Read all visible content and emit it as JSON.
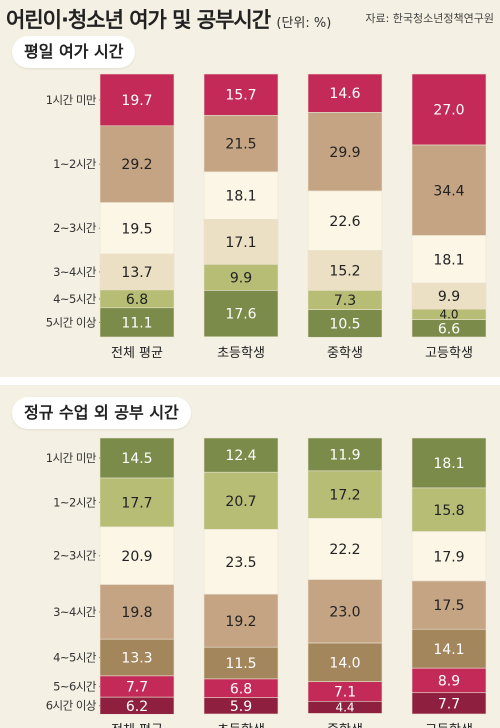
{
  "title": "어린이·청소년 여가 및 공부시간",
  "unit": "(단위: %)",
  "source": "자료: 한국청소년정책연구원",
  "chart_data": [
    {
      "type": "bar",
      "stacked": true,
      "orientation": "vertical",
      "title": "평일 여가 시간",
      "categories": [
        "전체 평균",
        "초등학생",
        "중학생",
        "고등학생"
      ],
      "series": [
        {
          "name": "1시간 미만",
          "color": "#c42a58",
          "values": [
            19.7,
            15.7,
            14.6,
            27.0
          ]
        },
        {
          "name": "1~2시간",
          "color": "#c5a484",
          "values": [
            29.2,
            21.5,
            29.9,
            34.4
          ]
        },
        {
          "name": "2~3시간",
          "color": "#fbf6e6",
          "values": [
            19.5,
            18.1,
            22.6,
            18.1
          ]
        },
        {
          "name": "3~4시간",
          "color": "#ece0c4",
          "values": [
            13.7,
            17.1,
            15.2,
            9.9
          ]
        },
        {
          "name": "4~5시간",
          "color": "#b7bd75",
          "values": [
            6.8,
            9.9,
            7.3,
            4.0
          ]
        },
        {
          "name": "5시간 이상",
          "color": "#7a8b4a",
          "values": [
            11.1,
            17.6,
            10.5,
            6.6
          ]
        }
      ],
      "ylim": [
        0,
        100
      ]
    },
    {
      "type": "bar",
      "stacked": true,
      "orientation": "vertical",
      "title": "정규 수업 외 공부 시간",
      "categories": [
        "전체 평균",
        "초등학생",
        "중학생",
        "고등학생"
      ],
      "series": [
        {
          "name": "1시간 미만",
          "color": "#7a8b4a",
          "values": [
            14.5,
            12.4,
            11.9,
            18.1
          ]
        },
        {
          "name": "1~2시간",
          "color": "#b7bd75",
          "values": [
            17.7,
            20.7,
            17.2,
            15.8
          ]
        },
        {
          "name": "2~3시간",
          "color": "#fbf6e6",
          "values": [
            20.9,
            23.5,
            22.2,
            17.9
          ]
        },
        {
          "name": "3~4시간",
          "color": "#c5a484",
          "values": [
            19.8,
            19.2,
            23.0,
            17.5
          ]
        },
        {
          "name": "4~5시간",
          "color": "#a4865c",
          "values": [
            13.3,
            11.5,
            14.0,
            14.1
          ]
        },
        {
          "name": "5~6시간",
          "color": "#c42a58",
          "values": [
            7.7,
            6.8,
            7.1,
            8.9
          ]
        },
        {
          "name": "6시간 이상",
          "color": "#8f1f3e",
          "values": [
            6.2,
            5.9,
            4.4,
            7.7
          ]
        }
      ],
      "ylim": [
        0,
        100
      ]
    }
  ]
}
